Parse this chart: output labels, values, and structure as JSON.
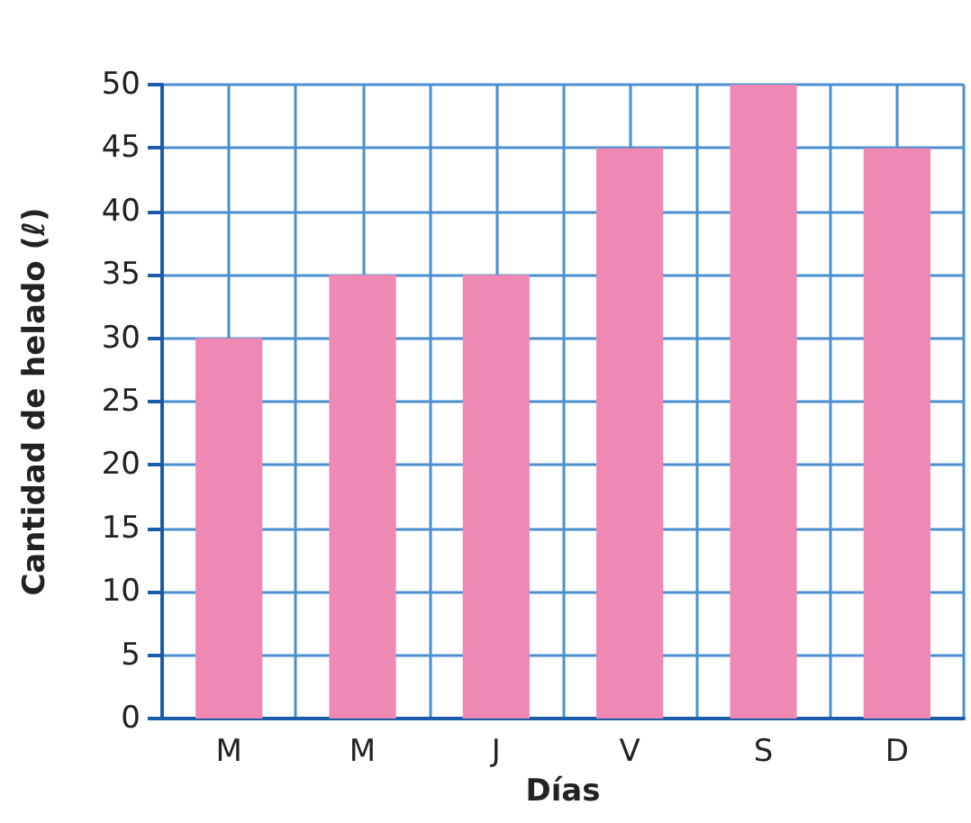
{
  "chart_data": {
    "type": "bar",
    "xlabel": "Días",
    "ylabel": "Cantidad de helado (ℓ)",
    "categories": [
      "M",
      "M",
      "J",
      "V",
      "S",
      "D"
    ],
    "values": [
      30,
      35,
      35,
      45,
      50,
      45
    ],
    "color": "#f088b4",
    "ylim": [
      0,
      50
    ],
    "yticks": [
      0,
      5,
      10,
      15,
      20,
      25,
      30,
      35,
      40,
      45,
      50
    ],
    "grid": true
  }
}
